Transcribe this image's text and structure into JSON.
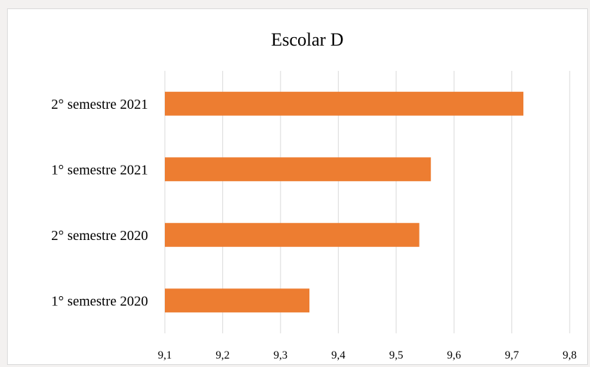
{
  "chart_data": {
    "type": "bar",
    "orientation": "horizontal",
    "title": "Escolar D",
    "categories": [
      "2° semestre 2021",
      "1° semestre 2021",
      "2° semestre 2020",
      "1° semestre 2020"
    ],
    "values": [
      9.72,
      9.56,
      9.54,
      9.35
    ],
    "xlim": [
      9.1,
      9.8
    ],
    "xticks": [
      "9,1",
      "9,2",
      "9,3",
      "9,4",
      "9,5",
      "9,6",
      "9,7",
      "9,8"
    ],
    "grid": true,
    "legend": "none",
    "colors": {
      "bar": "#ED7D31",
      "grid": "#d9d9d9"
    }
  }
}
